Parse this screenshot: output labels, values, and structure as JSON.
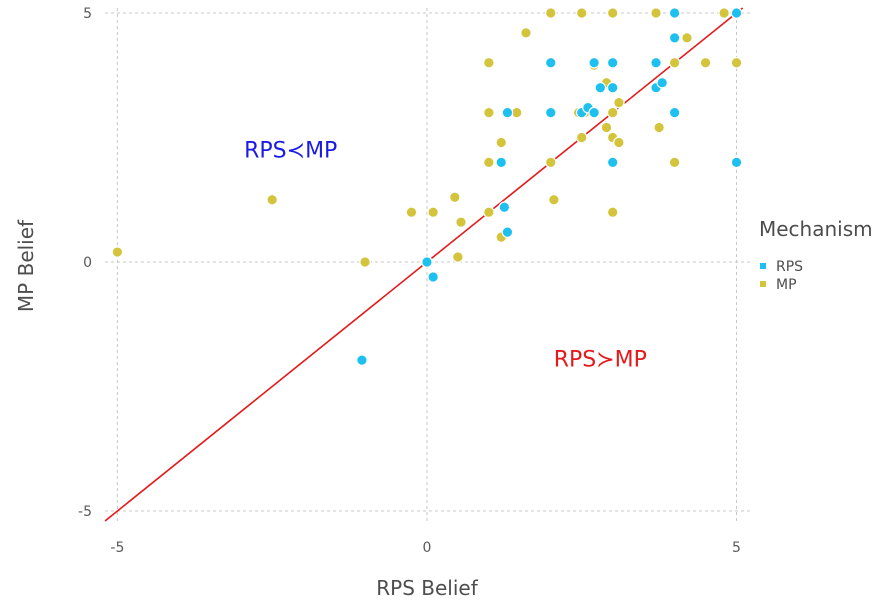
{
  "chart_data": {
    "type": "scatter",
    "title": "",
    "xlabel": "RPS Belief",
    "ylabel": "MP Belief",
    "xlim": [
      -5.2,
      5.25
    ],
    "ylim": [
      -5.2,
      5.1
    ],
    "xticks": [
      -5,
      0,
      5
    ],
    "yticks": [
      -5,
      0,
      5
    ],
    "xtick_labels": [
      "-5",
      "0",
      "5"
    ],
    "ytick_labels": [
      "-5",
      "0",
      "5"
    ],
    "grid": true,
    "legend": {
      "title": "Mechanism",
      "placement": "right"
    },
    "reference_line": {
      "type": "identity",
      "color": "#e41a1c"
    },
    "annotations": [
      {
        "text": "RPS≺MP",
        "x": -2.2,
        "y": 2.1,
        "color": "#1a1ae6"
      },
      {
        "text": "RPS≻MP",
        "x": 2.8,
        "y": -2.1,
        "color": "#e41a1c"
      }
    ],
    "series": [
      {
        "name": "RPS",
        "color": "#1ec0f0",
        "points": [
          [
            4,
            5
          ],
          [
            5,
            5
          ],
          [
            4,
            4.5
          ],
          [
            2,
            4
          ],
          [
            2.7,
            4
          ],
          [
            3,
            4
          ],
          [
            3.7,
            4
          ],
          [
            2.8,
            3.5
          ],
          [
            3,
            3.5
          ],
          [
            3.7,
            3.5
          ],
          [
            3.8,
            3.6
          ],
          [
            1.3,
            3
          ],
          [
            2,
            3
          ],
          [
            2.5,
            3
          ],
          [
            2.6,
            3.1
          ],
          [
            2.7,
            3
          ],
          [
            4,
            3
          ],
          [
            1.2,
            2
          ],
          [
            3,
            2
          ],
          [
            5,
            2
          ],
          [
            1.25,
            1.1
          ],
          [
            1.3,
            0.6
          ],
          [
            0,
            0
          ],
          [
            0.1,
            -0.3
          ],
          [
            -1.05,
            -1.97
          ]
        ]
      },
      {
        "name": "MP",
        "color": "#d4c43c",
        "points": [
          [
            2,
            5
          ],
          [
            2.5,
            5
          ],
          [
            3,
            5
          ],
          [
            3.7,
            5
          ],
          [
            4.8,
            5
          ],
          [
            1.6,
            4.6
          ],
          [
            4.2,
            4.5
          ],
          [
            1,
            4
          ],
          [
            2.7,
            3.95
          ],
          [
            4,
            4
          ],
          [
            4.5,
            4
          ],
          [
            5,
            4
          ],
          [
            2.9,
            3.6
          ],
          [
            3.1,
            3.2
          ],
          [
            1,
            3
          ],
          [
            1.45,
            3
          ],
          [
            2.45,
            3
          ],
          [
            2.55,
            3
          ],
          [
            3,
            3
          ],
          [
            1.2,
            2.4
          ],
          [
            2.9,
            2.7
          ],
          [
            3.75,
            2.7
          ],
          [
            2.5,
            2.5
          ],
          [
            3,
            2.5
          ],
          [
            3.1,
            2.4
          ],
          [
            1,
            2
          ],
          [
            2,
            2
          ],
          [
            4,
            2
          ],
          [
            -2.5,
            1.25
          ],
          [
            0.45,
            1.3
          ],
          [
            2.05,
            1.25
          ],
          [
            -0.25,
            1
          ],
          [
            0.1,
            1
          ],
          [
            1,
            1
          ],
          [
            3,
            1
          ],
          [
            0.55,
            0.8
          ],
          [
            1.2,
            0.5
          ],
          [
            -5,
            0.2
          ],
          [
            0.5,
            0.1
          ],
          [
            -1,
            0
          ]
        ]
      }
    ]
  }
}
